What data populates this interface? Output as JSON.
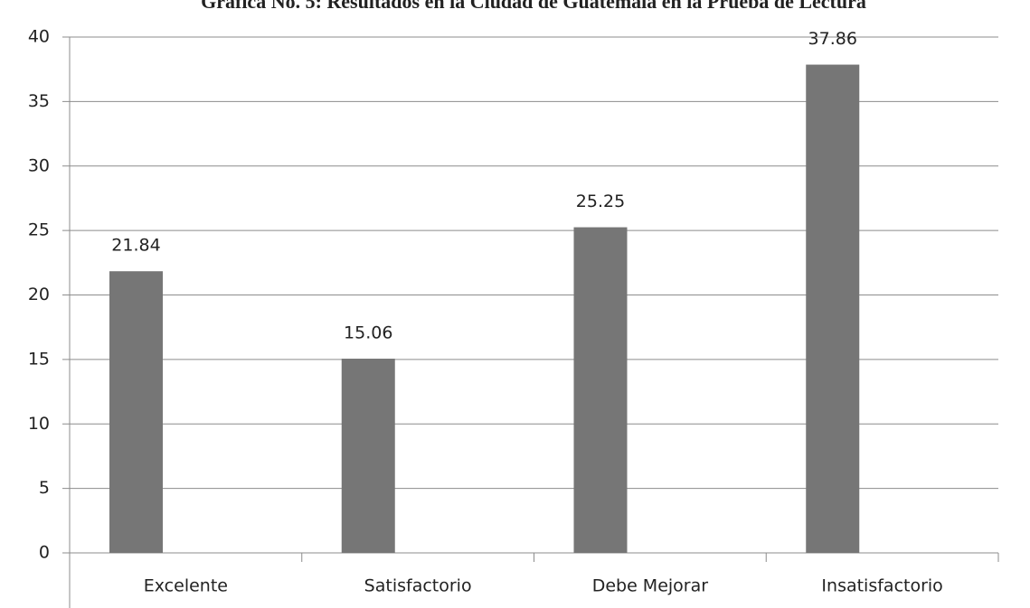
{
  "chart_data": {
    "type": "bar",
    "title": "Gráfica No. 5: Resultados en la Ciudad de Guatemala en la Prueba de Lectura",
    "categories": [
      "Excelente",
      "Satisfactorio",
      "Debe Mejorar",
      "Insatisfactorio"
    ],
    "values": [
      21.84,
      15.06,
      25.25,
      37.86
    ],
    "color": "#767676",
    "ylim": [
      0,
      40
    ],
    "yticks": [
      0,
      5,
      10,
      15,
      20,
      25,
      30,
      35,
      40
    ],
    "grid": true
  }
}
